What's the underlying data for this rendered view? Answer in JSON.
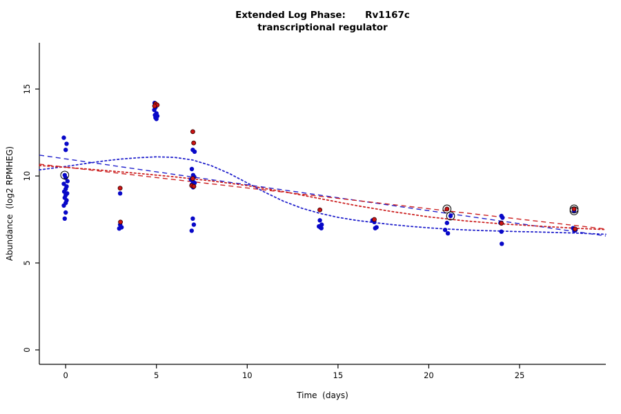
{
  "chart_data": {
    "type": "scatter",
    "title_lines": [
      "Extended Log Phase:      Rv1167c",
      "transcriptional regulator"
    ],
    "xlabel": "Time  (days)",
    "ylabel": "Abundance  (log2 RPMHEG)",
    "xlim": [
      -1.45,
      29.75
    ],
    "ylim": [
      -0.83,
      17.66
    ],
    "xticks": [
      0,
      5,
      10,
      15,
      20,
      25
    ],
    "yticks": [
      0,
      5,
      10,
      15
    ],
    "grid": false,
    "colors": {
      "blue_point": "#0808C8",
      "red_point": "#CC1414",
      "red_point_edge": "#3A0000",
      "blue_line": "#2020CC",
      "red_line": "#CC2020",
      "circle_marker": "#111111",
      "axis": "#000000"
    },
    "series": [
      {
        "name": "replicate-blue",
        "color_key": "blue_point",
        "points": [
          [
            -0.1,
            12.2
          ],
          [
            0.05,
            11.85
          ],
          [
            0,
            11.5
          ],
          [
            -0.05,
            10.05
          ],
          [
            0,
            9.9
          ],
          [
            0.1,
            9.7
          ],
          [
            -0.1,
            9.55
          ],
          [
            0.05,
            9.4
          ],
          [
            0,
            9.25
          ],
          [
            -0.08,
            9.1
          ],
          [
            0.08,
            9.0
          ],
          [
            0,
            8.9
          ],
          [
            -0.05,
            8.75
          ],
          [
            0.05,
            8.6
          ],
          [
            0,
            8.45
          ],
          [
            -0.1,
            8.3
          ],
          [
            0,
            7.9
          ],
          [
            -0.05,
            7.55
          ],
          [
            3,
            9.0
          ],
          [
            3,
            7.2
          ],
          [
            3.08,
            7.05
          ],
          [
            2.95,
            6.98
          ],
          [
            4.9,
            14.2
          ],
          [
            5.02,
            14.1
          ],
          [
            4.95,
            13.95
          ],
          [
            4.88,
            13.8
          ],
          [
            5,
            13.6
          ],
          [
            4.92,
            13.5
          ],
          [
            5.05,
            13.45
          ],
          [
            4.95,
            13.35
          ],
          [
            5,
            13.28
          ],
          [
            7,
            11.5
          ],
          [
            7.1,
            11.4
          ],
          [
            6.95,
            10.4
          ],
          [
            7.02,
            10.05
          ],
          [
            7.08,
            9.95
          ],
          [
            6.9,
            9.8
          ],
          [
            7,
            9.7
          ],
          [
            7.1,
            9.6
          ],
          [
            6.95,
            9.5
          ],
          [
            7.02,
            9.35
          ],
          [
            7,
            7.55
          ],
          [
            7.06,
            7.2
          ],
          [
            6.94,
            6.85
          ],
          [
            14,
            7.45
          ],
          [
            14.1,
            7.2
          ],
          [
            13.95,
            7.1
          ],
          [
            14.02,
            7.05
          ],
          [
            14.08,
            7.0
          ],
          [
            16.9,
            7.45
          ],
          [
            17,
            7.35
          ],
          [
            17.05,
            7.0
          ],
          [
            17.12,
            7.05
          ],
          [
            21.2,
            7.7
          ],
          [
            21,
            7.3
          ],
          [
            20.9,
            6.9
          ],
          [
            21.05,
            6.7
          ],
          [
            24,
            7.7
          ],
          [
            24.06,
            7.6
          ],
          [
            23.95,
            7.3
          ],
          [
            24,
            6.8
          ],
          [
            24.02,
            6.1
          ],
          [
            28,
            8.0
          ],
          [
            27.95,
            7.0
          ],
          [
            28.08,
            6.9
          ],
          [
            28.02,
            6.85
          ]
        ]
      },
      {
        "name": "replicate-red",
        "color_key": "red_point",
        "points": [
          [
            3,
            9.3
          ],
          [
            3.02,
            7.35
          ],
          [
            4.95,
            14.15
          ],
          [
            5.04,
            14.08
          ],
          [
            4.9,
            14.02
          ],
          [
            7,
            12.55
          ],
          [
            7.05,
            11.9
          ],
          [
            7,
            9.85
          ],
          [
            6.94,
            9.45
          ],
          [
            7.06,
            9.4
          ],
          [
            14,
            8.05
          ],
          [
            17,
            7.5
          ],
          [
            21,
            8.1
          ],
          [
            24,
            7.28
          ],
          [
            28,
            8.1
          ],
          [
            28.06,
            6.95
          ]
        ]
      }
    ],
    "linear_fits": [
      {
        "name": "blue-linear-fit",
        "color_key": "blue_line",
        "dash": "dashed",
        "points": [
          [
            -1.45,
            11.2
          ],
          [
            29.75,
            6.55
          ]
        ]
      },
      {
        "name": "red-linear-fit",
        "color_key": "red_line",
        "dash": "dashed",
        "points": [
          [
            -1.45,
            10.68
          ],
          [
            29.75,
            6.95
          ]
        ]
      }
    ],
    "smooth_fits": [
      {
        "name": "blue-smooth-fit",
        "color_key": "blue_line",
        "dash": "dotted",
        "points": [
          [
            -1.45,
            10.35
          ],
          [
            0,
            10.55
          ],
          [
            1,
            10.7
          ],
          [
            2,
            10.85
          ],
          [
            3,
            10.97
          ],
          [
            4,
            11.05
          ],
          [
            5,
            11.1
          ],
          [
            6,
            11.07
          ],
          [
            7,
            10.92
          ],
          [
            8,
            10.6
          ],
          [
            9,
            10.15
          ],
          [
            10,
            9.6
          ],
          [
            11,
            9.05
          ],
          [
            12,
            8.55
          ],
          [
            13,
            8.15
          ],
          [
            14,
            7.85
          ],
          [
            15,
            7.62
          ],
          [
            16,
            7.45
          ],
          [
            17,
            7.32
          ],
          [
            18,
            7.2
          ],
          [
            19,
            7.1
          ],
          [
            20,
            7.02
          ],
          [
            21,
            6.95
          ],
          [
            22,
            6.9
          ],
          [
            23,
            6.86
          ],
          [
            24,
            6.83
          ],
          [
            25,
            6.8
          ],
          [
            26,
            6.78
          ],
          [
            27,
            6.75
          ],
          [
            28,
            6.72
          ],
          [
            29.75,
            6.65
          ]
        ]
      },
      {
        "name": "red-smooth-fit",
        "color_key": "red_line",
        "dash": "dotted",
        "points": [
          [
            -1.45,
            10.6
          ],
          [
            0,
            10.5
          ],
          [
            2,
            10.33
          ],
          [
            4,
            10.15
          ],
          [
            6,
            9.95
          ],
          [
            8,
            9.72
          ],
          [
            10,
            9.45
          ],
          [
            12,
            9.1
          ],
          [
            14,
            8.7
          ],
          [
            16,
            8.3
          ],
          [
            18,
            7.95
          ],
          [
            20,
            7.65
          ],
          [
            22,
            7.42
          ],
          [
            24,
            7.25
          ],
          [
            26,
            7.12
          ],
          [
            28,
            7.0
          ],
          [
            29.75,
            6.92
          ]
        ]
      }
    ],
    "circled_points": [
      [
        -0.05,
        10.05
      ],
      [
        21,
        8.1
      ],
      [
        21.2,
        7.7
      ],
      [
        28,
        8.1
      ],
      [
        28,
        8.0
      ]
    ]
  }
}
